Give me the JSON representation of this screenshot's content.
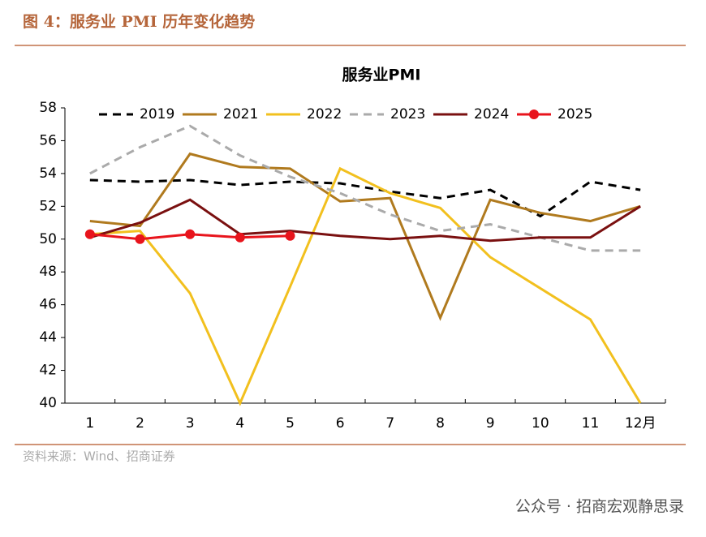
{
  "header": {
    "title": "图 4：服务业 PMI 历年变化趋势"
  },
  "chart_data": {
    "type": "line",
    "title": "服务业PMI",
    "categories": [
      "1",
      "2",
      "3",
      "4",
      "5",
      "6",
      "7",
      "8",
      "9",
      "10",
      "11",
      "12月"
    ],
    "ylim": [
      40,
      58
    ],
    "yticks": [
      40,
      42,
      44,
      46,
      48,
      50,
      52,
      54,
      56,
      58
    ],
    "legend": "top",
    "series": [
      {
        "name": "2019",
        "color": "#000000",
        "dash": true,
        "values": [
          53.6,
          53.5,
          53.6,
          53.3,
          53.5,
          53.4,
          52.9,
          52.5,
          53.0,
          51.4,
          53.5,
          53.0
        ]
      },
      {
        "name": "2021",
        "color": "#b07a1e",
        "values": [
          51.1,
          50.8,
          55.2,
          54.4,
          54.3,
          52.3,
          52.5,
          45.2,
          52.4,
          51.6,
          51.1,
          52.0
        ]
      },
      {
        "name": "2022",
        "color": "#f2c01e",
        "values": [
          50.3,
          50.5,
          46.7,
          40.0,
          47.1,
          54.3,
          52.8,
          51.9,
          48.9,
          47.0,
          45.1,
          40.0
        ]
      },
      {
        "name": "2023",
        "color": "#aaaaaa",
        "dash": true,
        "values": [
          54.0,
          55.6,
          56.9,
          55.1,
          53.8,
          52.8,
          51.5,
          50.5,
          50.9,
          50.1,
          49.3,
          49.3
        ]
      },
      {
        "name": "2024",
        "color": "#7a1010",
        "values": [
          50.1,
          51.0,
          52.4,
          50.3,
          50.5,
          50.2,
          50.0,
          50.2,
          49.9,
          50.1,
          50.1,
          52.0
        ]
      },
      {
        "name": "2025",
        "color": "#e8141c",
        "markers": true,
        "values": [
          50.3,
          50.0,
          50.3,
          50.1,
          50.2,
          null,
          null,
          null,
          null,
          null,
          null,
          null
        ]
      }
    ]
  },
  "source": "资料来源：Wind、招商证券",
  "watermark": "公众号 · 招商宏观静思录"
}
